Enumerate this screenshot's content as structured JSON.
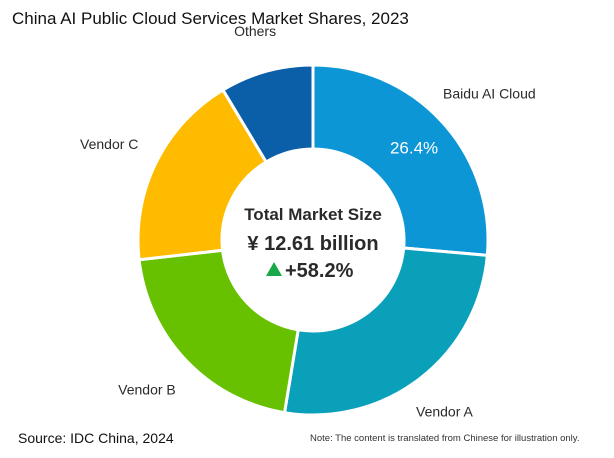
{
  "title": "China AI Public Cloud Services Market Shares, 2023",
  "source": "Source: IDC China, 2024",
  "note": "Note: The content is translated from Chinese for illustration only.",
  "chart_data": {
    "type": "pie",
    "variant": "donut",
    "title": "China AI Public Cloud Services Market Shares, 2023",
    "slices": [
      {
        "label": "Baidu AI Cloud",
        "value": 26.4,
        "display_value": "26.4%",
        "color": "#0d96d6"
      },
      {
        "label": "Vendor A",
        "value": 26.2,
        "display_value": "",
        "color": "#0aa0b9"
      },
      {
        "label": "Vendor B",
        "value": 20.6,
        "display_value": "",
        "color": "#67c100"
      },
      {
        "label": "Vendor C",
        "value": 18.2,
        "display_value": "",
        "color": "#ffbb00"
      },
      {
        "label": "Others",
        "value": 8.6,
        "display_value": "",
        "color": "#0b5ea8"
      }
    ],
    "start_angle_deg": 0,
    "direction": "clockwise",
    "center": {
      "title": "Total Market Size",
      "value": "¥ 12.61 billion",
      "growth": "+58.2%",
      "growth_icon": "up-triangle-icon",
      "growth_color": "#1aa84a"
    }
  }
}
